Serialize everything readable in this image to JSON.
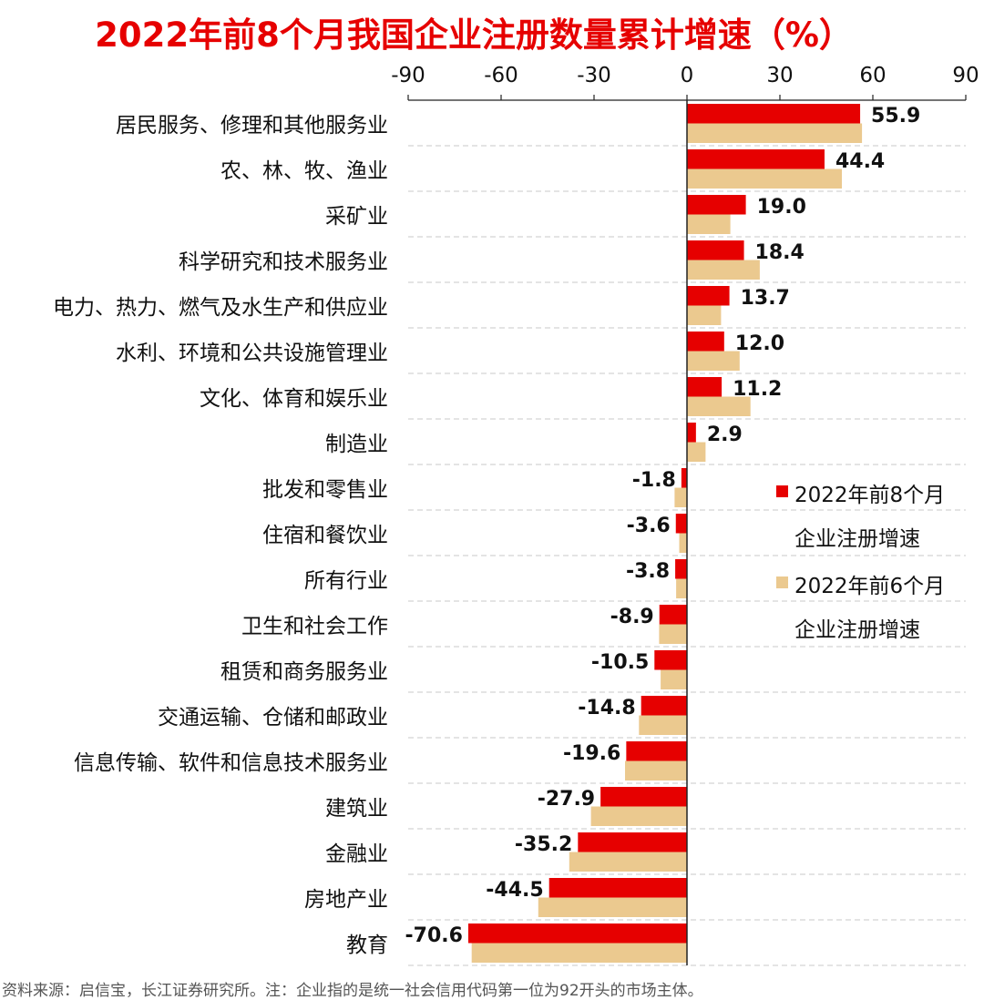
{
  "chart_data": {
    "type": "bar",
    "orientation": "horizontal",
    "title": "2022年前8个月我国企业注册数量累计增速（%）",
    "xlim": [
      -90,
      90
    ],
    "xticks": [
      -90,
      -60,
      -30,
      0,
      30,
      60,
      90
    ],
    "grid": "horizontal dashed",
    "categories": [
      "居民服务、修理和其他服务业",
      "农、林、牧、渔业",
      "采矿业",
      "科学研究和技术服务业",
      "电力、热力、燃气及水生产和供应业",
      "水利、环境和公共设施管理业",
      "文化、体育和娱乐业",
      "制造业",
      "批发和零售业",
      "住宿和餐饮业",
      "所有行业",
      "卫生和社会工作",
      "租赁和商务服务业",
      "交通运输、仓储和邮政业",
      "信息传输、软件和信息技术服务业",
      "建筑业",
      "金融业",
      "房地产业",
      "教育"
    ],
    "series": [
      {
        "name": "2022年前8个月企业注册增速",
        "legend_line1": "2022年前8个月",
        "legend_line2": "企业注册增速",
        "color": "#e60000",
        "values": [
          55.9,
          44.4,
          19.0,
          18.4,
          13.7,
          12.0,
          11.2,
          2.9,
          -1.8,
          -3.6,
          -3.8,
          -8.9,
          -10.5,
          -14.8,
          -19.6,
          -27.9,
          -35.2,
          -44.5,
          -70.6
        ],
        "labels": [
          "55.9",
          "44.4",
          "19.0",
          "18.4",
          "13.7",
          "12.0",
          "11.2",
          "2.9",
          "-1.8",
          "-3.6",
          "-3.8",
          "-8.9",
          "-10.5",
          "-14.8",
          "-19.6",
          "-27.9",
          "-35.2",
          "-44.5",
          "-70.6"
        ]
      },
      {
        "name": "2022年前6个月企业注册增速",
        "legend_line1": "2022年前6个月",
        "legend_line2": "企业注册增速",
        "color": "#ebc98f",
        "values": [
          56.5,
          50.0,
          14.0,
          23.5,
          11.0,
          17.0,
          20.5,
          6.0,
          -4.0,
          -2.5,
          -3.5,
          -9.0,
          -8.5,
          -15.5,
          -20.0,
          -31.0,
          -38.0,
          -48.0,
          -69.5
        ]
      }
    ],
    "legend_position": "right-middle"
  },
  "source_note": "资料来源：启信宝，长江证券研究所。注：企业指的是统一社会信用代码第一位为92开头的市场主体。"
}
